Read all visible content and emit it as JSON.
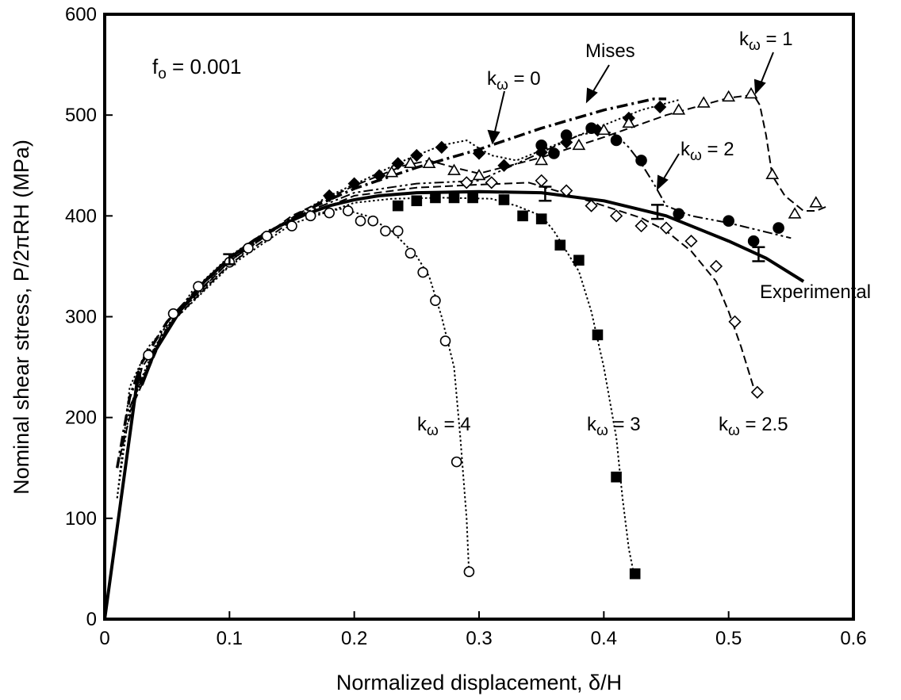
{
  "chart_data": {
    "type": "line",
    "xlabel_main": "Normalized displacement, ",
    "xlabel_sym": "δ",
    "xlabel_tail": "/H",
    "ylabel_main": "Nominal shear stress, P/2",
    "ylabel_sym": "π",
    "ylabel_tail": "RH (MPa)",
    "xlim": [
      0,
      0.6
    ],
    "ylim": [
      0,
      600
    ],
    "x_ticks": [
      0,
      0.1,
      0.2,
      0.3,
      0.4,
      0.5,
      0.6
    ],
    "x_tick_labels": [
      "0",
      "0.1",
      "0.2",
      "0.3",
      "0.4",
      "0.5",
      "0.6"
    ],
    "y_ticks": [
      0,
      100,
      200,
      300,
      400,
      500,
      600
    ],
    "y_tick_labels": [
      "0",
      "100",
      "200",
      "300",
      "400",
      "500",
      "600"
    ],
    "grid": false,
    "annotation_fo": {
      "f": "f",
      "sub": "o",
      "rest": " = 0.001"
    },
    "labels": {
      "mises": "Mises",
      "experimental": "Experimental",
      "k_prefix": "k",
      "k_sub": "ω",
      "k0": " = 0",
      "k1": " = 1",
      "k2": " = 2",
      "k25": " = 2.5",
      "k3": " = 3",
      "k4": " = 4"
    },
    "series": [
      {
        "name": "Experimental",
        "style": "solid",
        "line": [
          [
            0,
            0
          ],
          [
            0.027,
            245
          ],
          [
            0.03,
            233
          ],
          [
            0.04,
            265
          ],
          [
            0.06,
            305
          ],
          [
            0.08,
            335
          ],
          [
            0.1,
            358
          ],
          [
            0.12,
            376
          ],
          [
            0.14,
            390
          ],
          [
            0.16,
            401
          ],
          [
            0.18,
            410
          ],
          [
            0.2,
            416
          ],
          [
            0.22,
            420
          ],
          [
            0.25,
            423
          ],
          [
            0.3,
            424
          ],
          [
            0.35,
            423
          ],
          [
            0.4,
            415
          ],
          [
            0.45,
            400
          ],
          [
            0.5,
            375
          ],
          [
            0.53,
            358
          ],
          [
            0.56,
            335
          ]
        ],
        "markers": [],
        "error_bars": [
          [
            0.1,
            357,
            5
          ],
          [
            0.353,
            422,
            7
          ],
          [
            0.443,
            404,
            7
          ],
          [
            0.524,
            362,
            7
          ]
        ]
      },
      {
        "name": "Mises",
        "style": "dashdot",
        "line": [
          [
            0.01,
            150
          ],
          [
            0.02,
            220
          ],
          [
            0.03,
            255
          ],
          [
            0.05,
            295
          ],
          [
            0.08,
            335
          ],
          [
            0.12,
            375
          ],
          [
            0.16,
            405
          ],
          [
            0.2,
            427
          ],
          [
            0.25,
            448
          ],
          [
            0.3,
            466
          ],
          [
            0.35,
            487
          ],
          [
            0.4,
            505
          ],
          [
            0.44,
            516
          ],
          [
            0.45,
            516
          ]
        ],
        "markers": [],
        "error_bars": []
      },
      {
        "name": "k_w=0",
        "style": "dotted",
        "marker": "filled-diamond",
        "line": [
          [
            0.01,
            120
          ],
          [
            0.02,
            230
          ],
          [
            0.035,
            270
          ],
          [
            0.06,
            305
          ],
          [
            0.09,
            340
          ],
          [
            0.12,
            372
          ],
          [
            0.15,
            398
          ],
          [
            0.18,
            420
          ],
          [
            0.21,
            437
          ],
          [
            0.24,
            455
          ],
          [
            0.27,
            470
          ],
          [
            0.29,
            475
          ],
          [
            0.3,
            467
          ],
          [
            0.31,
            460
          ],
          [
            0.33,
            455
          ],
          [
            0.35,
            465
          ],
          [
            0.37,
            475
          ],
          [
            0.4,
            490
          ],
          [
            0.43,
            505
          ],
          [
            0.46,
            515
          ]
        ],
        "markers": [
          [
            0.18,
            420
          ],
          [
            0.2,
            432
          ],
          [
            0.22,
            440
          ],
          [
            0.235,
            452
          ],
          [
            0.25,
            460
          ],
          [
            0.27,
            468
          ],
          [
            0.3,
            462
          ],
          [
            0.32,
            450
          ],
          [
            0.35,
            463
          ],
          [
            0.37,
            473
          ],
          [
            0.395,
            485
          ],
          [
            0.42,
            497
          ],
          [
            0.445,
            508
          ]
        ],
        "error_bars": []
      },
      {
        "name": "k_w=1",
        "style": "dashed",
        "marker": "open-triangle",
        "line": [
          [
            0.01,
            150
          ],
          [
            0.03,
            250
          ],
          [
            0.06,
            305
          ],
          [
            0.1,
            355
          ],
          [
            0.15,
            400
          ],
          [
            0.2,
            430
          ],
          [
            0.24,
            450
          ],
          [
            0.26,
            455
          ],
          [
            0.28,
            448
          ],
          [
            0.3,
            442
          ],
          [
            0.35,
            458
          ],
          [
            0.4,
            478
          ],
          [
            0.45,
            500
          ],
          [
            0.5,
            517
          ],
          [
            0.52,
            520
          ],
          [
            0.525,
            510
          ],
          [
            0.53,
            480
          ],
          [
            0.535,
            440
          ],
          [
            0.545,
            420
          ],
          [
            0.56,
            405
          ],
          [
            0.57,
            405
          ],
          [
            0.58,
            410
          ]
        ],
        "markers": [
          [
            0.23,
            443
          ],
          [
            0.245,
            452
          ],
          [
            0.26,
            452
          ],
          [
            0.28,
            445
          ],
          [
            0.3,
            440
          ],
          [
            0.35,
            455
          ],
          [
            0.38,
            470
          ],
          [
            0.4,
            485
          ],
          [
            0.42,
            492
          ],
          [
            0.46,
            505
          ],
          [
            0.48,
            512
          ],
          [
            0.5,
            518
          ],
          [
            0.518,
            521
          ],
          [
            0.535,
            441
          ],
          [
            0.553,
            402
          ],
          [
            0.57,
            413
          ]
        ],
        "error_bars": []
      },
      {
        "name": "k_w=2",
        "style": "dashdotdot",
        "marker": "filled-circle",
        "line": [
          [
            0.02,
            210
          ],
          [
            0.05,
            295
          ],
          [
            0.1,
            355
          ],
          [
            0.15,
            398
          ],
          [
            0.2,
            423
          ],
          [
            0.25,
            432
          ],
          [
            0.3,
            435
          ],
          [
            0.35,
            463
          ],
          [
            0.38,
            480
          ],
          [
            0.4,
            485
          ],
          [
            0.41,
            480
          ],
          [
            0.42,
            468
          ],
          [
            0.43,
            452
          ],
          [
            0.44,
            432
          ],
          [
            0.45,
            410
          ],
          [
            0.47,
            400
          ],
          [
            0.5,
            393
          ],
          [
            0.55,
            378
          ]
        ],
        "markers": [
          [
            0.35,
            470
          ],
          [
            0.36,
            462
          ],
          [
            0.37,
            480
          ],
          [
            0.39,
            487
          ],
          [
            0.41,
            475
          ],
          [
            0.43,
            455
          ],
          [
            0.46,
            402
          ],
          [
            0.5,
            395
          ],
          [
            0.52,
            375
          ],
          [
            0.54,
            388
          ]
        ],
        "error_bars": []
      },
      {
        "name": "k_w=2.5",
        "style": "dashed",
        "marker": "open-diamond",
        "line": [
          [
            0.02,
            205
          ],
          [
            0.05,
            290
          ],
          [
            0.1,
            352
          ],
          [
            0.15,
            395
          ],
          [
            0.2,
            420
          ],
          [
            0.25,
            428
          ],
          [
            0.3,
            431
          ],
          [
            0.34,
            433
          ],
          [
            0.37,
            422
          ],
          [
            0.4,
            410
          ],
          [
            0.43,
            398
          ],
          [
            0.45,
            385
          ],
          [
            0.47,
            365
          ],
          [
            0.49,
            335
          ],
          [
            0.5,
            305
          ],
          [
            0.51,
            270
          ],
          [
            0.52,
            230
          ]
        ],
        "markers": [
          [
            0.29,
            433
          ],
          [
            0.31,
            433
          ],
          [
            0.35,
            435
          ],
          [
            0.37,
            425
          ],
          [
            0.39,
            410
          ],
          [
            0.41,
            400
          ],
          [
            0.43,
            390
          ],
          [
            0.45,
            388
          ],
          [
            0.47,
            375
          ],
          [
            0.49,
            350
          ],
          [
            0.505,
            295
          ],
          [
            0.523,
            225
          ]
        ],
        "error_bars": []
      },
      {
        "name": "k_w=3",
        "style": "dotted",
        "marker": "filled-square",
        "line": [
          [
            0.02,
            210
          ],
          [
            0.05,
            290
          ],
          [
            0.1,
            350
          ],
          [
            0.15,
            392
          ],
          [
            0.2,
            413
          ],
          [
            0.23,
            417
          ],
          [
            0.27,
            418
          ],
          [
            0.31,
            417
          ],
          [
            0.33,
            410
          ],
          [
            0.35,
            400
          ],
          [
            0.36,
            385
          ],
          [
            0.37,
            365
          ],
          [
            0.38,
            345
          ],
          [
            0.39,
            305
          ],
          [
            0.4,
            250
          ],
          [
            0.41,
            180
          ],
          [
            0.415,
            120
          ],
          [
            0.42,
            70
          ],
          [
            0.424,
            45
          ]
        ],
        "markers": [
          [
            0.235,
            410
          ],
          [
            0.25,
            415
          ],
          [
            0.265,
            418
          ],
          [
            0.28,
            418
          ],
          [
            0.295,
            418
          ],
          [
            0.32,
            416
          ],
          [
            0.335,
            400
          ],
          [
            0.35,
            397
          ],
          [
            0.365,
            371
          ],
          [
            0.38,
            356
          ],
          [
            0.395,
            282
          ],
          [
            0.41,
            141
          ],
          [
            0.425,
            45
          ]
        ],
        "error_bars": []
      },
      {
        "name": "k_w=4",
        "style": "dotted",
        "marker": "open-circle",
        "line": [
          [
            0.01,
            120
          ],
          [
            0.02,
            210
          ],
          [
            0.04,
            270
          ],
          [
            0.07,
            325
          ],
          [
            0.1,
            360
          ],
          [
            0.13,
            385
          ],
          [
            0.16,
            400
          ],
          [
            0.19,
            407
          ],
          [
            0.21,
            400
          ],
          [
            0.23,
            385
          ],
          [
            0.25,
            360
          ],
          [
            0.26,
            340
          ],
          [
            0.27,
            300
          ],
          [
            0.28,
            250
          ],
          [
            0.285,
            180
          ],
          [
            0.29,
            100
          ],
          [
            0.292,
            45
          ]
        ],
        "markers": [
          [
            0.035,
            262
          ],
          [
            0.055,
            303
          ],
          [
            0.075,
            330
          ],
          [
            0.1,
            354
          ],
          [
            0.115,
            368
          ],
          [
            0.13,
            380
          ],
          [
            0.15,
            390
          ],
          [
            0.165,
            400
          ],
          [
            0.18,
            403
          ],
          [
            0.195,
            405
          ],
          [
            0.205,
            395
          ],
          [
            0.215,
            395
          ],
          [
            0.225,
            385
          ],
          [
            0.235,
            385
          ],
          [
            0.245,
            363
          ],
          [
            0.255,
            344
          ],
          [
            0.265,
            316
          ],
          [
            0.273,
            276
          ],
          [
            0.282,
            156
          ],
          [
            0.292,
            47
          ]
        ],
        "error_bars": []
      }
    ]
  }
}
